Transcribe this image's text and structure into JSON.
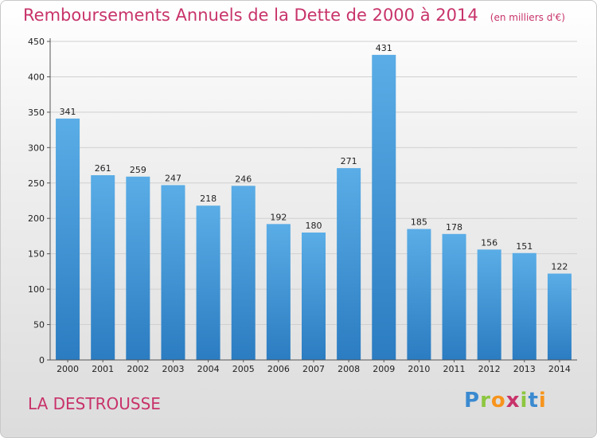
{
  "title": "Remboursements Annuels de la Dette de 2000 à 2014",
  "unit": "(en milliers d'€)",
  "commune": "LA DESTROUSSE",
  "logo": {
    "letters": [
      "P",
      "r",
      "o",
      "x",
      "i",
      "t",
      "i"
    ],
    "colors": [
      "#3a8ad0",
      "#8dc63f",
      "#f7941d",
      "#c8336a",
      "#8dc63f",
      "#3a8ad0",
      "#f7941d"
    ]
  },
  "colors": {
    "bar_top": "#5aade6",
    "bar_bottom": "#2b7cc1",
    "title": "#c8336a",
    "grid": "#d0d0d0"
  },
  "chart_data": {
    "type": "bar",
    "categories": [
      "2000",
      "2001",
      "2002",
      "2003",
      "2004",
      "2005",
      "2006",
      "2007",
      "2008",
      "2009",
      "2010",
      "2011",
      "2012",
      "2013",
      "2014"
    ],
    "values": [
      341,
      261,
      259,
      247,
      218,
      246,
      192,
      180,
      271,
      431,
      185,
      178,
      156,
      151,
      122
    ],
    "ylim": [
      0,
      450
    ],
    "yticks": [
      0,
      50,
      100,
      150,
      200,
      250,
      300,
      350,
      400,
      450
    ],
    "grid": true,
    "legend": "none"
  }
}
